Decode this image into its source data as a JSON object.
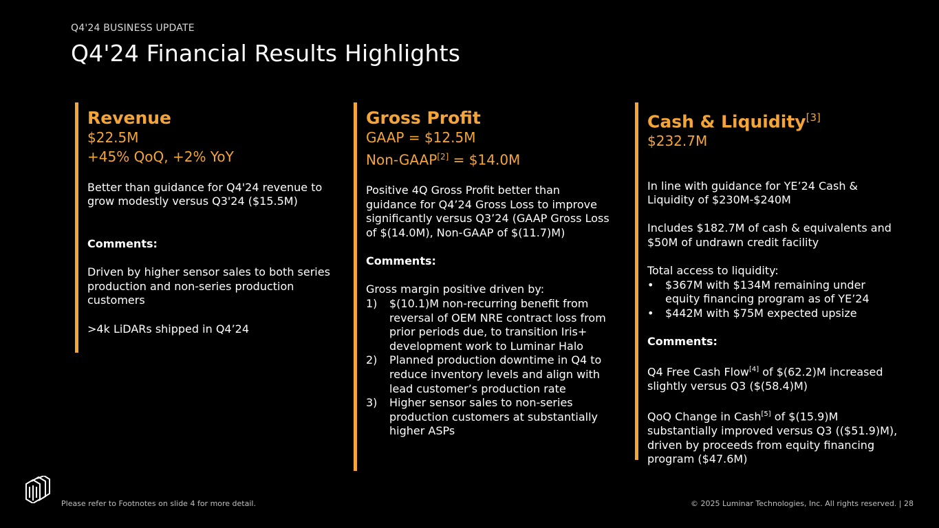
{
  "header": {
    "eyebrow": "Q4'24 BUSINESS UPDATE",
    "title": "Q4'24 Financial Results Highlights"
  },
  "accent_color": "#f4a53a",
  "revenue": {
    "heading": "Revenue",
    "value": "$22.5M",
    "change": "+45% QoQ, +2% YoY",
    "guidance": "Better than guidance for Q4'24 revenue to grow modestly versus Q3'24 ($15.5M)",
    "comments_label": "Comments:",
    "comment1": "Driven by higher sensor sales to both series production and non-series production customers",
    "comment2": ">4k LiDARs shipped in Q4’24"
  },
  "gross_profit": {
    "heading": "Gross Profit",
    "gaap": "GAAP = $12.5M",
    "nongaap_prefix": "Non-GAAP",
    "nongaap_ref": "[2]",
    "nongaap_suffix": " = $14.0M",
    "summary": "Positive 4Q Gross Profit better than guidance for Q4’24 Gross Loss to improve significantly versus Q3’24 (GAAP Gross Loss of $(14.0M), Non-GAAP of $(11.7)M)",
    "comments_label": "Comments:",
    "driver_intro": "Gross margin positive driven by:",
    "drivers": [
      {
        "num": "1)",
        "text": "$(10.1)M non-recurring benefit from reversal of OEM NRE contract loss from prior periods due, to transition Iris+ development work to Luminar Halo"
      },
      {
        "num": "2)",
        "text": "Planned production downtime in Q4 to reduce inventory levels and align with lead customer’s production rate"
      },
      {
        "num": "3)",
        "text": "Higher sensor sales to non-series production customers at substantially higher ASPs"
      }
    ]
  },
  "cash": {
    "heading": "Cash & Liquidity",
    "heading_ref": "[3]",
    "value": "$232.7M",
    "guidance": "In line with guidance for YE’24 Cash & Liquidity of $230M-$240M",
    "includes": "Includes $182.7M of cash & equivalents and $50M of undrawn credit facility",
    "access_label": "Total access to liquidity:",
    "bullets": [
      {
        "dot": "•",
        "text": "$367M with $134M remaining under equity financing program as of YE’24"
      },
      {
        "dot": "•",
        "text": "$442M with $75M expected upsize"
      }
    ],
    "comments_label": "Comments:",
    "fcf_prefix": "Q4 Free Cash Flow",
    "fcf_ref": "[4]",
    "fcf_suffix": " of $(62.2)M increased slightly versus Q3 ($(58.4)M)",
    "qoq_prefix": "QoQ Change in Cash",
    "qoq_ref": "[5]",
    "qoq_suffix": " of $(15.9)M substantially improved versus Q3 (($51.9)M), driven by proceeds from equity financing program ($47.6M)"
  },
  "footer": {
    "note": "Please refer to Footnotes on slide 4 for more detail.",
    "copyright": "© 2025 Luminar Technologies, Inc. All rights reserved.  |  28"
  }
}
